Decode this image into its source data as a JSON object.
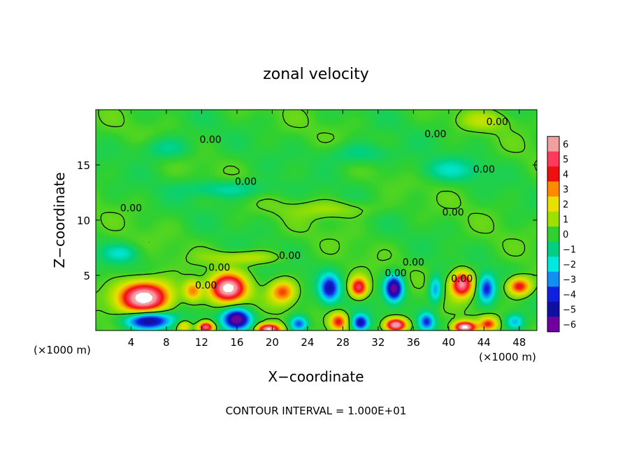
{
  "chart_data": {
    "type": "heatmap",
    "title": "zonal velocity",
    "xlabel": "X−coordinate",
    "ylabel": "Z−coordinate",
    "x_unit": "(×1000 m)",
    "xlim": [
      0,
      50
    ],
    "ylim": [
      0,
      20
    ],
    "x_ticks": [
      4,
      8,
      12,
      16,
      20,
      24,
      28,
      32,
      36,
      40,
      44,
      48
    ],
    "y_ticks": [
      5,
      10,
      15
    ],
    "footer": "CONTOUR INTERVAL = 1.000E+01",
    "contour_value_label": "0.00",
    "contour_labels": [
      {
        "x": 13.0,
        "y": 17.0,
        "text": "0.00"
      },
      {
        "x": 17.0,
        "y": 13.2,
        "text": "0.00"
      },
      {
        "x": 4.0,
        "y": 10.8,
        "text": "0.00"
      },
      {
        "x": 38.5,
        "y": 17.5,
        "text": "0.00"
      },
      {
        "x": 45.5,
        "y": 18.6,
        "text": "0.00"
      },
      {
        "x": 44.0,
        "y": 14.3,
        "text": "0.00"
      },
      {
        "x": 40.5,
        "y": 10.4,
        "text": "0.00"
      },
      {
        "x": 22.0,
        "y": 6.5,
        "text": "0.00"
      },
      {
        "x": 14.0,
        "y": 5.4,
        "text": "0.00"
      },
      {
        "x": 12.5,
        "y": 3.8,
        "text": "0.00"
      },
      {
        "x": 36.0,
        "y": 5.9,
        "text": "0.00"
      },
      {
        "x": 34.0,
        "y": 4.9,
        "text": "0.00"
      },
      {
        "x": 41.5,
        "y": 4.4,
        "text": "0.00"
      }
    ],
    "colorbar": {
      "levels": [
        6,
        5,
        4,
        3,
        2,
        1,
        0,
        -1,
        -2,
        -3,
        -4,
        -5,
        -6
      ],
      "labels": [
        "6",
        "5",
        "4",
        "3",
        "2",
        "1",
        "0",
        "−1",
        "−2",
        "−3",
        "−4",
        "−5",
        "−6"
      ],
      "colors": [
        "#f0a0a0",
        "#ff3a5a",
        "#ee1010",
        "#ff8a00",
        "#e8e000",
        "#a0e000",
        "#30d030",
        "#00d080",
        "#00e8e0",
        "#1090f0",
        "#1020e0",
        "#1010a0",
        "#7000a0"
      ]
    },
    "features": [
      {
        "x": 5.5,
        "z": 3.0,
        "sx": 2.8,
        "sz": 1.4,
        "v": 7.5
      },
      {
        "x": 15.0,
        "z": 3.8,
        "sx": 1.9,
        "sz": 1.2,
        "v": 7.0
      },
      {
        "x": 11.0,
        "z": 3.6,
        "sx": 1.0,
        "sz": 0.9,
        "v": 3.0
      },
      {
        "x": 21.2,
        "z": 3.5,
        "sx": 1.4,
        "sz": 1.0,
        "v": 3.5
      },
      {
        "x": 26.5,
        "z": 3.8,
        "sx": 1.1,
        "sz": 1.2,
        "v": -4.5
      },
      {
        "x": 29.8,
        "z": 3.9,
        "sx": 1.0,
        "sz": 0.9,
        "v": 5.0
      },
      {
        "x": 33.8,
        "z": 3.8,
        "sx": 1.0,
        "sz": 1.1,
        "v": -6.5
      },
      {
        "x": 38.5,
        "z": 3.7,
        "sx": 0.7,
        "sz": 1.2,
        "v": -3.0
      },
      {
        "x": 41.5,
        "z": 4.2,
        "sx": 1.2,
        "sz": 1.1,
        "v": 6.0
      },
      {
        "x": 44.3,
        "z": 3.8,
        "sx": 0.9,
        "sz": 1.2,
        "v": -4.0
      },
      {
        "x": 48.0,
        "z": 4.0,
        "sx": 1.3,
        "sz": 0.8,
        "v": 4.5
      },
      {
        "x": 6.0,
        "z": 0.9,
        "sx": 2.6,
        "sz": 0.8,
        "v": -6.0
      },
      {
        "x": 10.0,
        "z": 0.4,
        "sx": 0.8,
        "sz": 0.5,
        "v": 2.5
      },
      {
        "x": 12.5,
        "z": 0.3,
        "sx": 0.9,
        "sz": 0.5,
        "v": 6.0
      },
      {
        "x": 16.0,
        "z": 1.0,
        "sx": 1.5,
        "sz": 0.9,
        "v": -6.5
      },
      {
        "x": 19.6,
        "z": 0.1,
        "sx": 1.3,
        "sz": 0.5,
        "v": 7.0
      },
      {
        "x": 23.0,
        "z": 0.6,
        "sx": 1.0,
        "sz": 0.7,
        "v": -4.0
      },
      {
        "x": 27.5,
        "z": 0.8,
        "sx": 1.0,
        "sz": 0.8,
        "v": 4.0
      },
      {
        "x": 30.0,
        "z": 0.7,
        "sx": 0.9,
        "sz": 0.7,
        "v": -5.0
      },
      {
        "x": 34.0,
        "z": 0.5,
        "sx": 1.2,
        "sz": 0.6,
        "v": 7.0
      },
      {
        "x": 37.5,
        "z": 0.8,
        "sx": 0.9,
        "sz": 0.8,
        "v": -4.0
      },
      {
        "x": 41.8,
        "z": 0.3,
        "sx": 1.2,
        "sz": 0.5,
        "v": 7.0
      },
      {
        "x": 44.5,
        "z": 0.6,
        "sx": 1.0,
        "sz": 0.6,
        "v": 3.5
      },
      {
        "x": 47.5,
        "z": 0.8,
        "sx": 1.0,
        "sz": 0.7,
        "v": -2.5
      },
      {
        "x": 17.0,
        "z": 6.6,
        "sx": 4.0,
        "sz": 0.6,
        "v": 1.5
      },
      {
        "x": 15.0,
        "z": 12.8,
        "sx": 5.0,
        "sz": 0.8,
        "v": -1.5
      },
      {
        "x": 8.0,
        "z": 16.5,
        "sx": 3.0,
        "sz": 1.0,
        "v": -1.3
      },
      {
        "x": 30.0,
        "z": 16.0,
        "sx": 4.0,
        "sz": 1.0,
        "v": -1.2
      },
      {
        "x": 40.0,
        "z": 14.5,
        "sx": 3.5,
        "sz": 1.0,
        "v": -1.4
      },
      {
        "x": 27.0,
        "z": 11.0,
        "sx": 5.0,
        "sz": 0.8,
        "v": 1.0
      },
      {
        "x": 44.0,
        "z": 19.0,
        "sx": 3.0,
        "sz": 0.8,
        "v": 1.0
      },
      {
        "x": 3.0,
        "z": 7.0,
        "sx": 2.0,
        "sz": 0.8,
        "v": -1.6
      }
    ]
  }
}
